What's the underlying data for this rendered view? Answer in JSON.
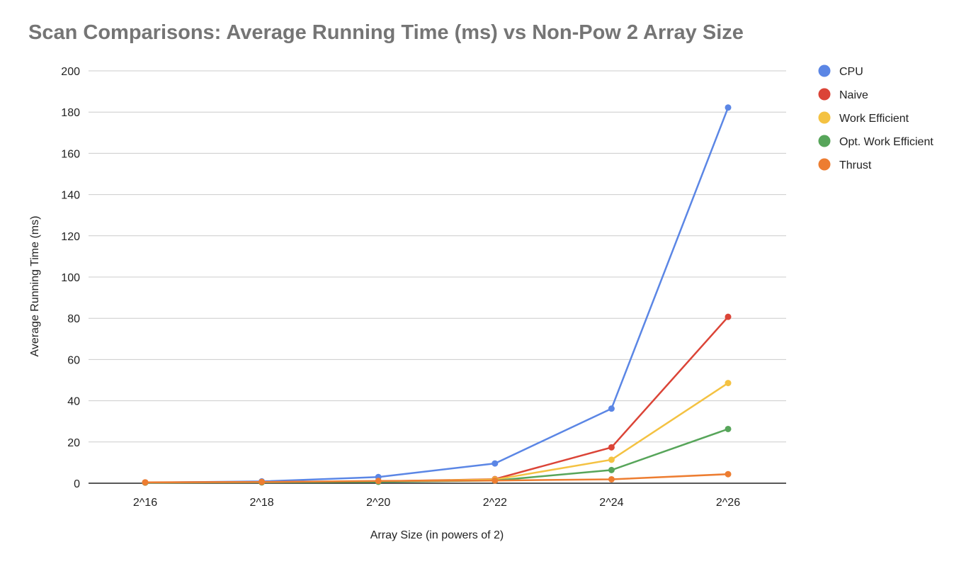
{
  "chart_data": {
    "type": "line",
    "title": "Scan Comparisons: Average Running Time (ms) vs Non-Pow 2 Array Size",
    "xlabel": "Array Size (in powers of 2)",
    "ylabel": "Average Running Time (ms)",
    "categories": [
      "2^16",
      "2^18",
      "2^20",
      "2^22",
      "2^24",
      "2^26"
    ],
    "ylim": [
      0,
      200
    ],
    "yticks": [
      0,
      20,
      40,
      60,
      80,
      100,
      120,
      140,
      160,
      180,
      200
    ],
    "grid": true,
    "legend_position": "right",
    "series": [
      {
        "name": "CPU",
        "color": "#5b86e5",
        "values": [
          0.3,
          0.9,
          3.0,
          9.6,
          36.2,
          182.2
        ]
      },
      {
        "name": "Naive",
        "color": "#db4437",
        "values": [
          0.4,
          0.6,
          0.9,
          2.0,
          17.4,
          80.7
        ]
      },
      {
        "name": "Work Efficient",
        "color": "#f4c242",
        "values": [
          0.3,
          0.5,
          0.9,
          1.8,
          11.4,
          48.6
        ]
      },
      {
        "name": "Opt. Work Efficient",
        "color": "#57a55a",
        "values": [
          0.3,
          0.4,
          0.7,
          1.3,
          6.4,
          26.3
        ]
      },
      {
        "name": "Thrust",
        "color": "#ed7d31",
        "values": [
          0.4,
          0.6,
          1.1,
          1.3,
          1.9,
          4.4
        ]
      }
    ]
  }
}
